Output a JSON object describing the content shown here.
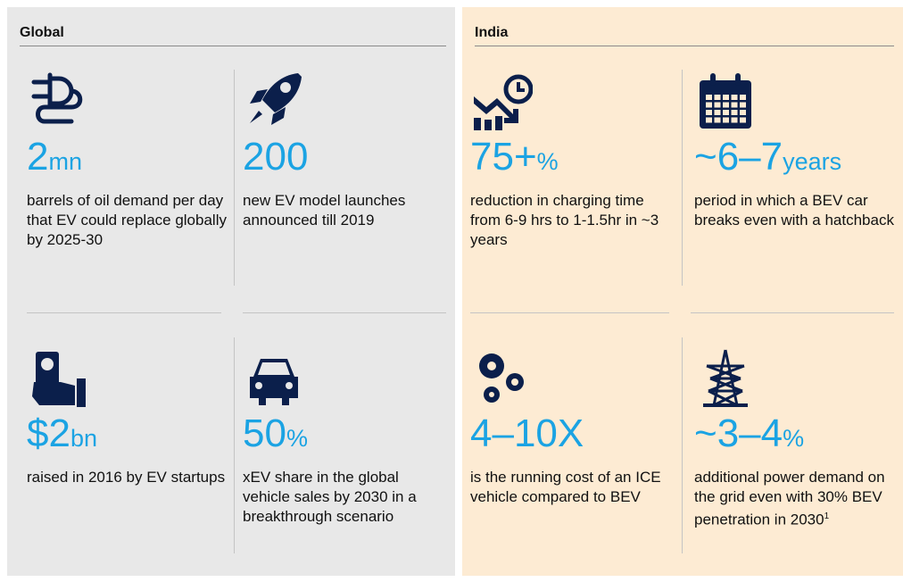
{
  "panels": [
    {
      "title": "Global",
      "items": [
        {
          "value": "2",
          "unit": "mn",
          "text": "barrels of oil demand per day that EV could replace globally by 2025-30"
        },
        {
          "value": "200",
          "text": "new EV model launches announced till 2019"
        },
        {
          "value": "$2",
          "unit": "bn",
          "text": "raised in 2016 by EV startups"
        },
        {
          "value": "50",
          "unit": "%",
          "text": "xEV share in the global vehicle sales by 2030 in a breakthrough scenario"
        }
      ]
    },
    {
      "title": "India",
      "items": [
        {
          "value": "75+",
          "unit": "%",
          "text": "reduction in charging time from 6-9 hrs to 1-1.5hr in ~3 years"
        },
        {
          "value": "~6–7",
          "unit": "years",
          "text": "period in which a BEV car breaks even with a hatchback"
        },
        {
          "value": "4–10X",
          "text": "is the running cost of an ICE vehicle compared to BEV"
        },
        {
          "value": "~3–4",
          "unit": "%",
          "text": "additional power demand on the grid even with 30% BEV penetration in 2030",
          "note": "1"
        }
      ]
    }
  ]
}
